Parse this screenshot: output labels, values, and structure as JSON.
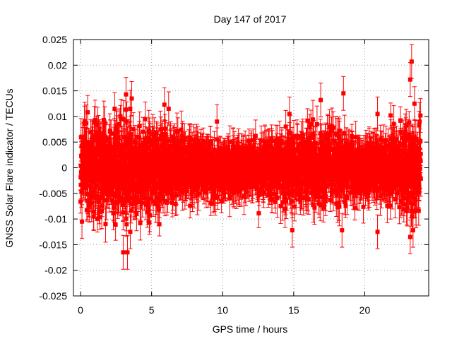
{
  "chart_data": {
    "type": "scatter",
    "title": "Day 147 of 2017",
    "xlabel": "GPS time / hours",
    "ylabel": "GNSS Solar Flare indicator / TECUs",
    "xlim": [
      -0.5,
      24.5
    ],
    "ylim": [
      -0.025,
      0.025
    ],
    "x_ticks": [
      "0",
      "5",
      "10",
      "15",
      "20"
    ],
    "x_tick_values": [
      0,
      5,
      10,
      15,
      20
    ],
    "y_ticks": [
      "-0.025",
      "-0.02",
      "-0.015",
      "-0.01",
      "-0.005",
      "0",
      "0.005",
      "0.01",
      "0.015",
      "0.02",
      "0.025"
    ],
    "y_tick_values": [
      -0.025,
      -0.02,
      -0.015,
      -0.01,
      -0.005,
      0,
      0.005,
      0.01,
      0.015,
      0.02,
      0.025
    ],
    "grid": true,
    "series": [
      {
        "color": "#ff0000",
        "marker": "square",
        "error_bars": true,
        "x_range": [
          0,
          23.95
        ],
        "sample_interval_hours": 0.0083,
        "typical_error": 0.003,
        "envelope": [
          {
            "x": 0,
            "sd": 0.0035
          },
          {
            "x": 1,
            "sd": 0.004
          },
          {
            "x": 2,
            "sd": 0.0042
          },
          {
            "x": 3,
            "sd": 0.0048
          },
          {
            "x": 4,
            "sd": 0.004
          },
          {
            "x": 5,
            "sd": 0.0036
          },
          {
            "x": 6,
            "sd": 0.0036
          },
          {
            "x": 7,
            "sd": 0.0032
          },
          {
            "x": 8,
            "sd": 0.0028
          },
          {
            "x": 9,
            "sd": 0.0026
          },
          {
            "x": 10,
            "sd": 0.0024
          },
          {
            "x": 11,
            "sd": 0.0022
          },
          {
            "x": 12,
            "sd": 0.0023
          },
          {
            "x": 13,
            "sd": 0.0024
          },
          {
            "x": 14,
            "sd": 0.0028
          },
          {
            "x": 15,
            "sd": 0.0033
          },
          {
            "x": 16,
            "sd": 0.0035
          },
          {
            "x": 17,
            "sd": 0.0033
          },
          {
            "x": 18,
            "sd": 0.0033
          },
          {
            "x": 19,
            "sd": 0.0026
          },
          {
            "x": 20,
            "sd": 0.0023
          },
          {
            "x": 21,
            "sd": 0.0024
          },
          {
            "x": 22,
            "sd": 0.003
          },
          {
            "x": 23,
            "sd": 0.0042
          },
          {
            "x": 24,
            "sd": 0.0035
          }
        ],
        "outliers": [
          {
            "x": 0.1,
            "y": -0.0105
          },
          {
            "x": 0.5,
            "y": 0.0108
          },
          {
            "x": 1.2,
            "y": 0.0085
          },
          {
            "x": 3.0,
            "y": -0.0165
          },
          {
            "x": 3.2,
            "y": 0.0143
          },
          {
            "x": 3.3,
            "y": -0.0165
          },
          {
            "x": 3.5,
            "y": -0.0125
          },
          {
            "x": 3.6,
            "y": 0.0135
          },
          {
            "x": 4.2,
            "y": -0.0108
          },
          {
            "x": 5.9,
            "y": 0.0123
          },
          {
            "x": 6.2,
            "y": 0.0115
          },
          {
            "x": 9.6,
            "y": 0.009
          },
          {
            "x": 14.7,
            "y": 0.0105
          },
          {
            "x": 14.9,
            "y": -0.0122
          },
          {
            "x": 16.9,
            "y": 0.0132
          },
          {
            "x": 18.5,
            "y": 0.0145
          },
          {
            "x": 18.4,
            "y": -0.0122
          },
          {
            "x": 20.9,
            "y": 0.0105
          },
          {
            "x": 20.9,
            "y": -0.0125
          },
          {
            "x": 23.2,
            "y": 0.0172
          },
          {
            "x": 23.3,
            "y": 0.0207
          },
          {
            "x": 23.2,
            "y": -0.0135
          },
          {
            "x": 23.5,
            "y": 0.0125
          },
          {
            "x": 23.4,
            "y": -0.0122
          }
        ]
      }
    ]
  }
}
